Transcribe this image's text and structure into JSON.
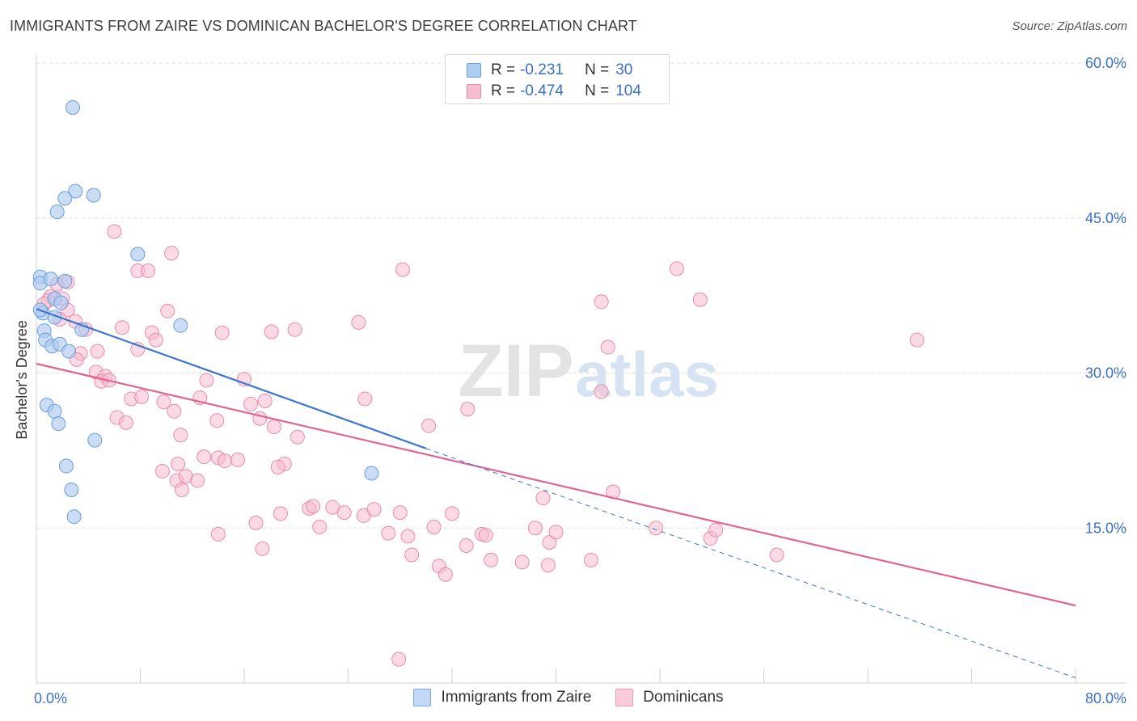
{
  "header": {
    "title": "IMMIGRANTS FROM ZAIRE VS DOMINICAN BACHELOR'S DEGREE CORRELATION CHART",
    "source": "Source: ZipAtlas.com"
  },
  "watermark": {
    "zip": "ZIP",
    "atlas": "atlas"
  },
  "legend_top": {
    "rows": [
      {
        "r_label": "R =",
        "r_value": "-0.231",
        "n_label": "N =",
        "n_value": "30"
      },
      {
        "r_label": "R =",
        "r_value": "-0.474",
        "n_label": "N =",
        "n_value": "104"
      }
    ]
  },
  "colors": {
    "zaire_fill": "#aecbf0",
    "zaire_stroke": "#6a9fdc",
    "zaire_line": "#3a77d0",
    "dom_fill": "#f7bcd0",
    "dom_stroke": "#e98bab",
    "dom_line": "#e06592",
    "grid": "#dedede",
    "axis_label": "#3a6fc8"
  },
  "chart_data": {
    "type": "scatter",
    "title": "IMMIGRANTS FROM ZAIRE VS DOMINICAN BACHELOR'S DEGREE CORRELATION CHART",
    "xlabel": "",
    "ylabel": "Bachelor's Degree",
    "xlim": [
      0,
      80
    ],
    "ylim": [
      0,
      60
    ],
    "x_tick_labels": [
      "0.0%",
      "80.0%"
    ],
    "y_ticks": [
      15,
      30,
      45,
      60
    ],
    "y_tick_labels": [
      "15.0%",
      "30.0%",
      "45.0%",
      "60.0%"
    ],
    "grid": true,
    "legend_position": "bottom",
    "series": [
      {
        "name": "Immigrants from Zaire",
        "r": -0.231,
        "n": 30,
        "trend": {
          "x": [
            0,
            30
          ],
          "y": [
            36.2,
            22.7
          ]
        },
        "trend_extension": {
          "x": [
            30,
            80
          ],
          "y": [
            22.7,
            0.5
          ]
        },
        "points": [
          [
            2.8,
            55.7
          ],
          [
            3.0,
            47.6
          ],
          [
            2.2,
            46.9
          ],
          [
            4.4,
            47.2
          ],
          [
            1.6,
            45.6
          ],
          [
            7.8,
            41.5
          ],
          [
            0.3,
            39.3
          ],
          [
            0.3,
            38.7
          ],
          [
            1.1,
            39.1
          ],
          [
            2.2,
            38.9
          ],
          [
            1.4,
            37.2
          ],
          [
            1.9,
            36.8
          ],
          [
            0.5,
            35.8
          ],
          [
            1.4,
            35.4
          ],
          [
            0.6,
            34.1
          ],
          [
            3.5,
            34.2
          ],
          [
            11.1,
            34.6
          ],
          [
            0.7,
            33.2
          ],
          [
            1.2,
            32.6
          ],
          [
            1.8,
            32.8
          ],
          [
            2.5,
            32.1
          ],
          [
            0.8,
            26.9
          ],
          [
            1.4,
            26.3
          ],
          [
            1.7,
            25.1
          ],
          [
            4.5,
            23.5
          ],
          [
            2.3,
            21.0
          ],
          [
            2.7,
            18.7
          ],
          [
            25.8,
            20.3
          ],
          [
            2.9,
            16.1
          ],
          [
            0.3,
            36.1
          ]
        ]
      },
      {
        "name": "Dominicans",
        "r": -0.474,
        "n": 104,
        "trend": {
          "x": [
            0,
            80
          ],
          "y": [
            30.9,
            7.5
          ]
        },
        "points": [
          [
            6.0,
            43.7
          ],
          [
            10.4,
            41.6
          ],
          [
            7.8,
            39.9
          ],
          [
            8.6,
            39.9
          ],
          [
            1.6,
            38.6
          ],
          [
            2.4,
            38.8
          ],
          [
            1.1,
            37.4
          ],
          [
            0.9,
            37.0
          ],
          [
            2.0,
            37.2
          ],
          [
            0.6,
            36.7
          ],
          [
            10.1,
            36.0
          ],
          [
            2.4,
            36.1
          ],
          [
            1.8,
            35.2
          ],
          [
            3.0,
            35.0
          ],
          [
            6.6,
            34.4
          ],
          [
            8.9,
            33.9
          ],
          [
            3.8,
            34.2
          ],
          [
            9.2,
            33.2
          ],
          [
            7.8,
            32.3
          ],
          [
            3.4,
            31.9
          ],
          [
            3.1,
            31.3
          ],
          [
            4.6,
            30.1
          ],
          [
            5.3,
            29.7
          ],
          [
            5.0,
            29.2
          ],
          [
            5.6,
            29.3
          ],
          [
            7.3,
            27.5
          ],
          [
            8.1,
            27.7
          ],
          [
            9.8,
            27.2
          ],
          [
            10.6,
            26.3
          ],
          [
            6.2,
            25.7
          ],
          [
            6.9,
            25.2
          ],
          [
            11.1,
            24.0
          ],
          [
            12.6,
            27.6
          ],
          [
            13.1,
            29.3
          ],
          [
            12.9,
            21.9
          ],
          [
            14.0,
            21.8
          ],
          [
            14.5,
            21.5
          ],
          [
            15.5,
            21.6
          ],
          [
            14.3,
            33.9
          ],
          [
            16.5,
            27.0
          ],
          [
            17.2,
            25.6
          ],
          [
            17.6,
            27.3
          ],
          [
            18.3,
            24.8
          ],
          [
            16.0,
            29.4
          ],
          [
            18.1,
            34.0
          ],
          [
            19.9,
            34.2
          ],
          [
            13.9,
            25.4
          ],
          [
            19.1,
            21.2
          ],
          [
            18.6,
            20.9
          ],
          [
            20.1,
            23.8
          ],
          [
            9.7,
            20.5
          ],
          [
            10.8,
            19.6
          ],
          [
            11.5,
            20.0
          ],
          [
            11.2,
            18.7
          ],
          [
            12.4,
            19.6
          ],
          [
            10.9,
            21.2
          ],
          [
            17.4,
            13.0
          ],
          [
            14.0,
            14.4
          ],
          [
            16.9,
            15.5
          ],
          [
            18.8,
            16.4
          ],
          [
            21.0,
            16.9
          ],
          [
            21.3,
            17.1
          ],
          [
            21.8,
            15.1
          ],
          [
            22.8,
            17.0
          ],
          [
            23.7,
            16.5
          ],
          [
            25.2,
            16.2
          ],
          [
            26.0,
            16.8
          ],
          [
            27.1,
            14.5
          ],
          [
            28.0,
            16.5
          ],
          [
            28.6,
            14.2
          ],
          [
            28.9,
            12.4
          ],
          [
            30.6,
            15.1
          ],
          [
            31.0,
            11.3
          ],
          [
            31.5,
            10.5
          ],
          [
            32.0,
            16.4
          ],
          [
            33.1,
            13.3
          ],
          [
            34.3,
            14.4
          ],
          [
            34.6,
            14.3
          ],
          [
            35.0,
            11.9
          ],
          [
            37.4,
            11.7
          ],
          [
            38.4,
            15.0
          ],
          [
            39.0,
            17.9
          ],
          [
            39.5,
            13.6
          ],
          [
            39.4,
            11.4
          ],
          [
            40.0,
            14.6
          ],
          [
            42.7,
            11.9
          ],
          [
            44.4,
            18.5
          ],
          [
            47.7,
            15.0
          ],
          [
            51.9,
            14.0
          ],
          [
            52.3,
            14.8
          ],
          [
            57.0,
            12.4
          ],
          [
            33.2,
            26.5
          ],
          [
            30.2,
            24.9
          ],
          [
            28.2,
            40.0
          ],
          [
            24.8,
            34.9
          ],
          [
            25.3,
            27.5
          ],
          [
            43.5,
            36.9
          ],
          [
            44.0,
            32.5
          ],
          [
            43.5,
            28.2
          ],
          [
            49.3,
            40.1
          ],
          [
            51.1,
            37.1
          ],
          [
            67.8,
            33.2
          ],
          [
            27.9,
            2.3
          ],
          [
            4.7,
            32.1
          ]
        ]
      }
    ]
  }
}
